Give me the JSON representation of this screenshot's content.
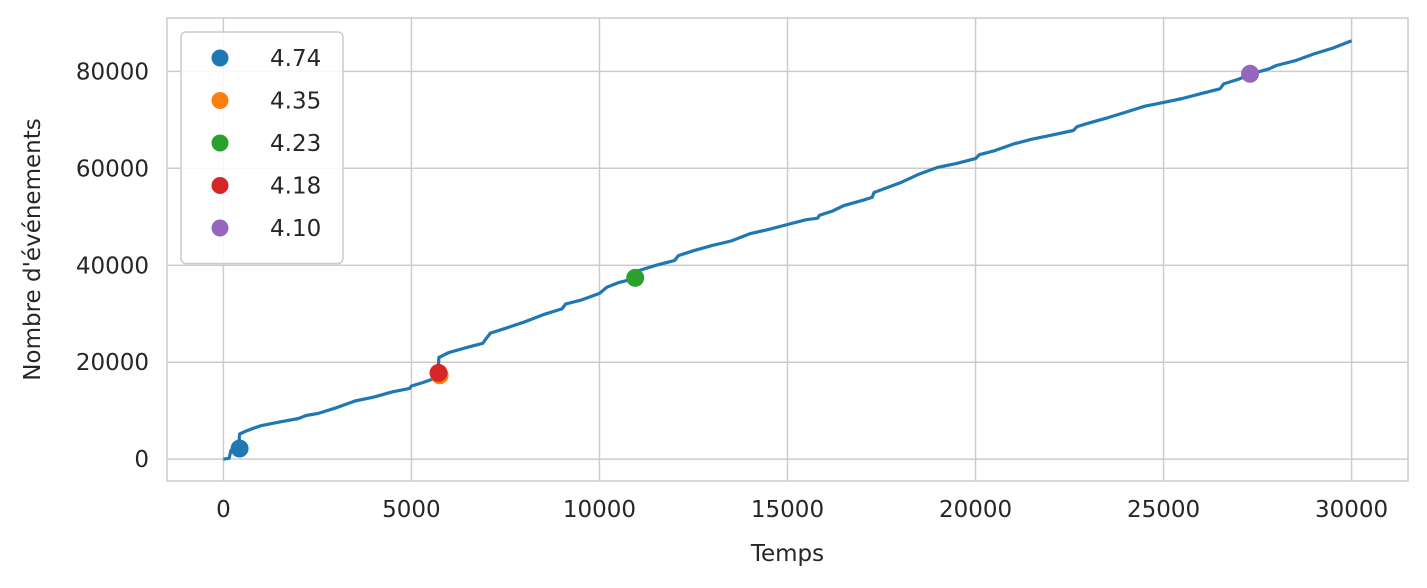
{
  "chart_data": {
    "type": "line",
    "title": "",
    "xlabel": "Temps",
    "ylabel": "Nombre d'événements",
    "xlim": [
      -1500,
      31500
    ],
    "ylim": [
      -4500,
      91000
    ],
    "xticks": [
      0,
      5000,
      10000,
      15000,
      20000,
      25000,
      30000
    ],
    "xtick_labels": [
      "0",
      "5000",
      "10000",
      "15000",
      "20000",
      "25000",
      "30000"
    ],
    "yticks": [
      0,
      20000,
      40000,
      60000,
      80000
    ],
    "ytick_labels": [
      "0",
      "20000",
      "40000",
      "60000",
      "80000"
    ],
    "grid": true,
    "legend_position": "upper left",
    "series": [
      {
        "color": "#1f77b4",
        "points": [
          [
            0,
            0
          ],
          [
            150,
            200
          ],
          [
            200,
            1800
          ],
          [
            350,
            2000
          ],
          [
            400,
            2200
          ],
          [
            430,
            5200
          ],
          [
            600,
            5800
          ],
          [
            800,
            6400
          ],
          [
            1000,
            6900
          ],
          [
            1500,
            7700
          ],
          [
            2000,
            8400
          ],
          [
            2200,
            9000
          ],
          [
            2500,
            9400
          ],
          [
            3000,
            10600
          ],
          [
            3500,
            12000
          ],
          [
            4000,
            12800
          ],
          [
            4500,
            13900
          ],
          [
            4950,
            14600
          ],
          [
            5000,
            15100
          ],
          [
            5300,
            15800
          ],
          [
            5700,
            16900
          ],
          [
            5730,
            21000
          ],
          [
            6000,
            22000
          ],
          [
            6500,
            23100
          ],
          [
            6900,
            23900
          ],
          [
            6950,
            24500
          ],
          [
            7100,
            26000
          ],
          [
            7500,
            27000
          ],
          [
            8000,
            28300
          ],
          [
            8500,
            29800
          ],
          [
            9000,
            31000
          ],
          [
            9100,
            32000
          ],
          [
            9500,
            32800
          ],
          [
            10000,
            34200
          ],
          [
            10200,
            35500
          ],
          [
            10500,
            36400
          ],
          [
            10900,
            37200
          ],
          [
            11000,
            38800
          ],
          [
            11500,
            40000
          ],
          [
            12000,
            41000
          ],
          [
            12100,
            42000
          ],
          [
            12500,
            43000
          ],
          [
            13000,
            44100
          ],
          [
            13500,
            45000
          ],
          [
            14000,
            46500
          ],
          [
            14500,
            47400
          ],
          [
            15000,
            48400
          ],
          [
            15500,
            49400
          ],
          [
            15800,
            49700
          ],
          [
            15850,
            50300
          ],
          [
            16200,
            51200
          ],
          [
            16500,
            52300
          ],
          [
            17000,
            53400
          ],
          [
            17250,
            54000
          ],
          [
            17300,
            55000
          ],
          [
            18000,
            57000
          ],
          [
            18500,
            58800
          ],
          [
            19000,
            60200
          ],
          [
            19500,
            61000
          ],
          [
            20000,
            62000
          ],
          [
            20100,
            62800
          ],
          [
            20500,
            63600
          ],
          [
            21000,
            65000
          ],
          [
            21500,
            66000
          ],
          [
            22000,
            66800
          ],
          [
            22600,
            67800
          ],
          [
            22700,
            68600
          ],
          [
            23000,
            69300
          ],
          [
            23500,
            70400
          ],
          [
            24000,
            71600
          ],
          [
            24500,
            72800
          ],
          [
            25000,
            73600
          ],
          [
            25500,
            74400
          ],
          [
            26000,
            75400
          ],
          [
            26500,
            76400
          ],
          [
            26600,
            77400
          ],
          [
            27000,
            78400
          ],
          [
            27300,
            79400
          ],
          [
            27800,
            80500
          ],
          [
            28000,
            81200
          ],
          [
            28500,
            82200
          ],
          [
            29000,
            83600
          ],
          [
            29500,
            84800
          ],
          [
            30000,
            86300
          ]
        ]
      }
    ],
    "scatter": [
      {
        "name": "4.74",
        "x": 430,
        "y": 2200,
        "color": "#1f77b4"
      },
      {
        "name": "4.35",
        "x": 5750,
        "y": 17300,
        "color": "#ff7f0e"
      },
      {
        "name": "4.23",
        "x": 10950,
        "y": 37400,
        "color": "#2ca02c"
      },
      {
        "name": "4.18",
        "x": 5720,
        "y": 17800,
        "color": "#d62728"
      },
      {
        "name": "4.10",
        "x": 27300,
        "y": 79500,
        "color": "#9467bd"
      }
    ]
  }
}
